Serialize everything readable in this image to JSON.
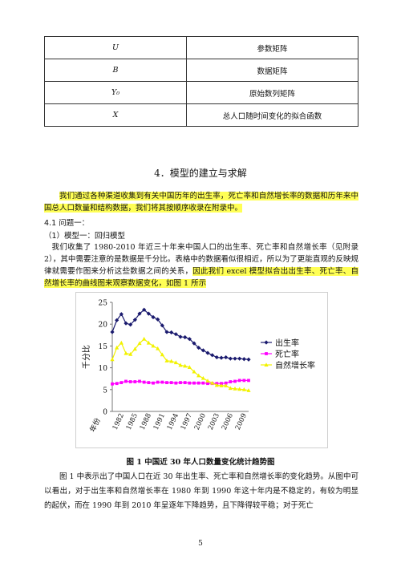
{
  "table": [
    {
      "symbol": "U",
      "desc": "参数矩阵"
    },
    {
      "symbol": "B",
      "desc": "数据矩阵"
    },
    {
      "symbol": "Y₀",
      "desc": "原始数列矩阵"
    },
    {
      "symbol": "X",
      "desc": "总人口随时间变化的拟合函数"
    }
  ],
  "section_title": "4．模型的建立与求解",
  "intro_highlight": "我们通过各种渠道收集到有关中国历年的出生率，死亡率和自然增长率的数据和历年来中国总人口数量和结构数据，我们将其按顺序收录在附录中。",
  "q1_heading": "4.1 问题一：",
  "model1_heading": "（1）模型一：回归模型",
  "para1_normal": "我们收集了 1980-2010 年近三十年来中国人口的出生率、死亡率和自然增长率（见附录 2），其中需要注意的是数据是千分比。表格中的数据看似很相近，所以为了更能直观的反映规律就需要作图来分析这些数据之间的关系，",
  "para1_highlight": "因此我们 excel 模型拟合出出生率、死亡率、自然增长率的曲线图来观察数据变化，如图 1 所示",
  "figure_caption": "图 1  中国近 30 年人口数量变化统计趋势图",
  "para2": "图 1 中表示出了中国人口在近 30 年出生率、死亡率和自然增长率的变化趋势。从图中可以看出，对于出生率和自然增长率在 1980 年到 1990 年这十年内是不稳定的，有较为明显的起伏，而在 1990 年到 2010 年呈逐年下降趋势，且下降得较平稳；对于死亡",
  "page_number": "5",
  "chart_data": {
    "type": "line",
    "ylabel": "千分比",
    "xlabel": "年份",
    "ylim": [
      0,
      25
    ],
    "yticks": [
      0,
      5,
      10,
      15,
      20,
      25
    ],
    "x": [
      1980,
      1981,
      1982,
      1983,
      1984,
      1985,
      1986,
      1987,
      1988,
      1989,
      1990,
      1991,
      1992,
      1993,
      1994,
      1995,
      1996,
      1997,
      1998,
      1999,
      2000,
      2001,
      2002,
      2003,
      2004,
      2005,
      2006,
      2007,
      2008,
      2009,
      2010
    ],
    "xtick_labels": [
      "1982",
      "1985",
      "1988",
      "1991",
      "1994",
      "1997",
      "2000",
      "2003",
      "2006",
      "2009"
    ],
    "legend_position": "right",
    "series": [
      {
        "name": "出生率",
        "color": "#1a1a6e",
        "marker": "diamond",
        "values": [
          18.2,
          20.9,
          22.3,
          20.2,
          19.9,
          21.0,
          22.4,
          23.3,
          22.4,
          21.6,
          21.1,
          19.7,
          18.2,
          18.1,
          17.7,
          17.1,
          17.0,
          16.6,
          15.6,
          14.6,
          14.0,
          13.4,
          12.9,
          12.4,
          12.3,
          12.4,
          12.1,
          12.1,
          12.1,
          12.0,
          11.9
        ]
      },
      {
        "name": "死亡率",
        "color": "#ff00ff",
        "marker": "square",
        "values": [
          6.3,
          6.4,
          6.6,
          6.9,
          6.8,
          6.8,
          6.9,
          6.7,
          6.6,
          6.5,
          6.7,
          6.7,
          6.6,
          6.6,
          6.5,
          6.6,
          6.6,
          6.5,
          6.5,
          6.5,
          6.5,
          6.4,
          6.4,
          6.4,
          6.4,
          6.5,
          6.8,
          6.9,
          7.1,
          7.1,
          7.1
        ]
      },
      {
        "name": "自然增长率",
        "color": "#f2f200",
        "marker": "triangle",
        "values": [
          11.9,
          14.6,
          15.7,
          13.3,
          13.1,
          14.3,
          15.6,
          16.6,
          15.7,
          15.0,
          14.4,
          13.0,
          11.6,
          11.5,
          11.2,
          10.6,
          10.4,
          10.1,
          9.1,
          8.2,
          7.6,
          7.0,
          6.5,
          6.0,
          5.9,
          5.9,
          5.3,
          5.2,
          5.1,
          5.0,
          4.8
        ]
      }
    ]
  }
}
